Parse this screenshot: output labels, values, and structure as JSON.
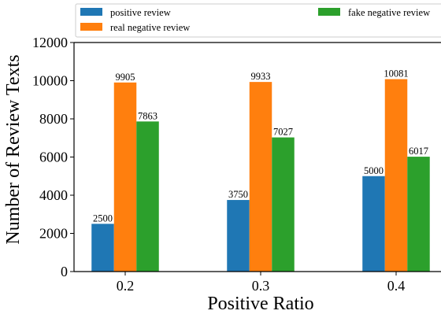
{
  "chart_data": {
    "type": "bar",
    "title": "",
    "xlabel": "Positive Ratio",
    "ylabel": "Number of Review Texts",
    "categories": [
      "0.2",
      "0.3",
      "0.4"
    ],
    "ylim": [
      0,
      12000
    ],
    "yticks": [
      0,
      2000,
      4000,
      6000,
      8000,
      10000,
      12000
    ],
    "grid": false,
    "legend_position": "top",
    "series": [
      {
        "name": "positive review",
        "color": "#1f77b4",
        "values": [
          2500,
          3750,
          5000
        ]
      },
      {
        "name": "real negative review",
        "color": "#ff7f0e",
        "values": [
          9905,
          9933,
          10081
        ]
      },
      {
        "name": "fake negative review",
        "color": "#2ca02c",
        "values": [
          7863,
          7027,
          6017
        ]
      }
    ]
  }
}
